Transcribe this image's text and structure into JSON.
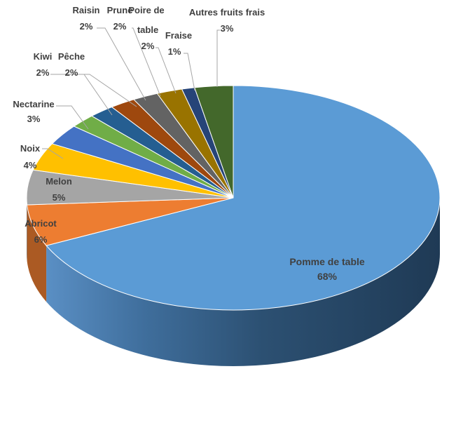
{
  "chart_data": {
    "type": "pie",
    "style": "3d",
    "slices": [
      {
        "label": "Pomme de table",
        "value": 68,
        "value_label": "68%",
        "color": "#5b9bd5"
      },
      {
        "label": "Abricot",
        "value": 6,
        "value_label": "6%",
        "color": "#ed7d31"
      },
      {
        "label": "Melon",
        "value": 5,
        "value_label": "5%",
        "color": "#a5a5a5"
      },
      {
        "label": "Noix",
        "value": 4,
        "value_label": "4%",
        "color": "#ffc000"
      },
      {
        "label": "Nectarine",
        "value": 3,
        "value_label": "3%",
        "color": "#4472c4"
      },
      {
        "label": "Kiwi",
        "value": 2,
        "value_label": "2%",
        "color": "#70ad47"
      },
      {
        "label": "Pêche",
        "value": 2,
        "value_label": "2%",
        "color": "#255e91"
      },
      {
        "label": "Raisin",
        "value": 2,
        "value_label": "2%",
        "color": "#9e480e"
      },
      {
        "label": "Prune",
        "value": 2,
        "value_label": "2%",
        "color": "#636363"
      },
      {
        "label": "Poire de table",
        "value": 2,
        "value_label": "2%",
        "color": "#997300"
      },
      {
        "label": "Fraise",
        "value": 1,
        "value_label": "1%",
        "color": "#264478"
      },
      {
        "label": "Autres fruits frais",
        "value": 3,
        "value_label": "3%",
        "color": "#43682b"
      }
    ]
  }
}
